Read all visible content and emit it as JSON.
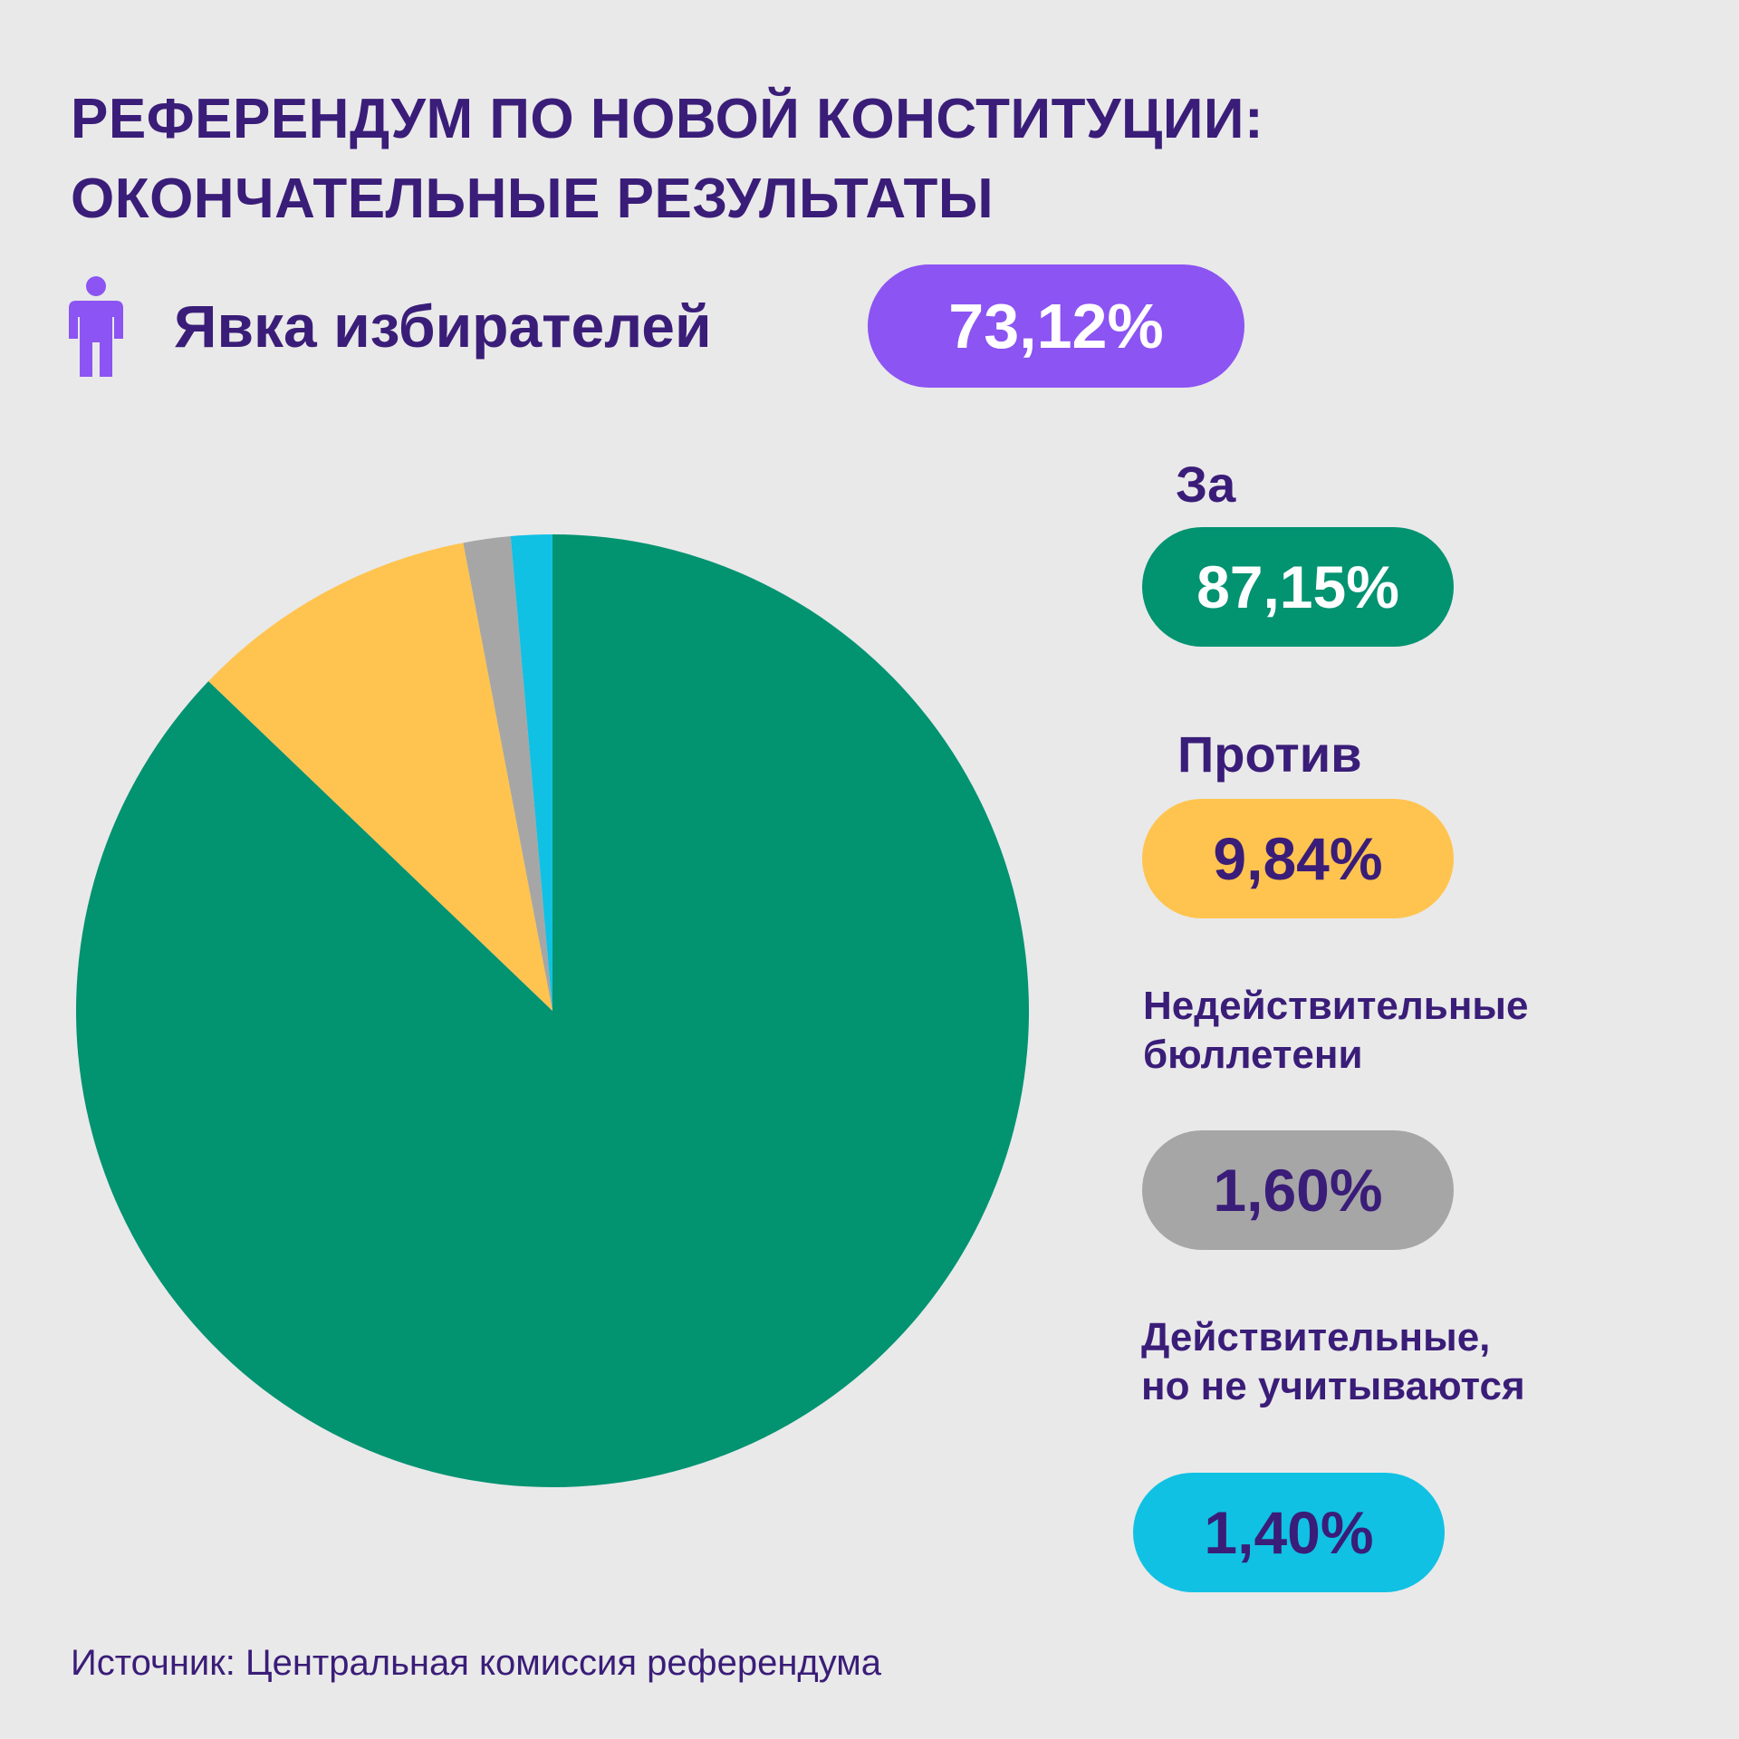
{
  "title": {
    "line1": "РЕФЕРЕНДУМ ПО НОВОЙ КОНСТИТУЦИИ:",
    "line2": "ОКОНЧАТЕЛЬНЫЕ РЕЗУЛЬТАТЫ"
  },
  "turnout": {
    "label": "Явка избирателей",
    "value_text": "73,12%",
    "value": 73.12,
    "icon": "person-icon",
    "color": "#8c54f2"
  },
  "chart_data": {
    "type": "pie",
    "title": "РЕФЕРЕНДУМ ПО НОВОЙ КОНСТИТУЦИИ: ОКОНЧАТЕЛЬНЫЕ РЕЗУЛЬТАТЫ",
    "start": "12 o'clock, clockwise",
    "slices": [
      {
        "name": "За",
        "value": 87.15,
        "label": "87,15%",
        "color": "#029371",
        "text_color": "#ffffff"
      },
      {
        "name": "Против",
        "value": 9.84,
        "label": "9,84%",
        "color": "#ffc44f",
        "text_color": "#3a1d78"
      },
      {
        "name": "Недействительные бюллетени",
        "value": 1.6,
        "label": "1,60%",
        "color": "#a6a6a6",
        "text_color": "#3a1d78"
      },
      {
        "name": "Действительные, но не учитываются",
        "value": 1.4,
        "label": "1,40%",
        "color": "#10c1e3",
        "text_color": "#3a1d78"
      }
    ]
  },
  "legend": {
    "za": "За",
    "protiv": "Против",
    "invalid_line1": "Недействительные",
    "invalid_line2": "бюллетени",
    "valid_line1": "Действительные,",
    "valid_line2": "но не учитываются"
  },
  "source": "Источник: Центральная комиссия референдума"
}
